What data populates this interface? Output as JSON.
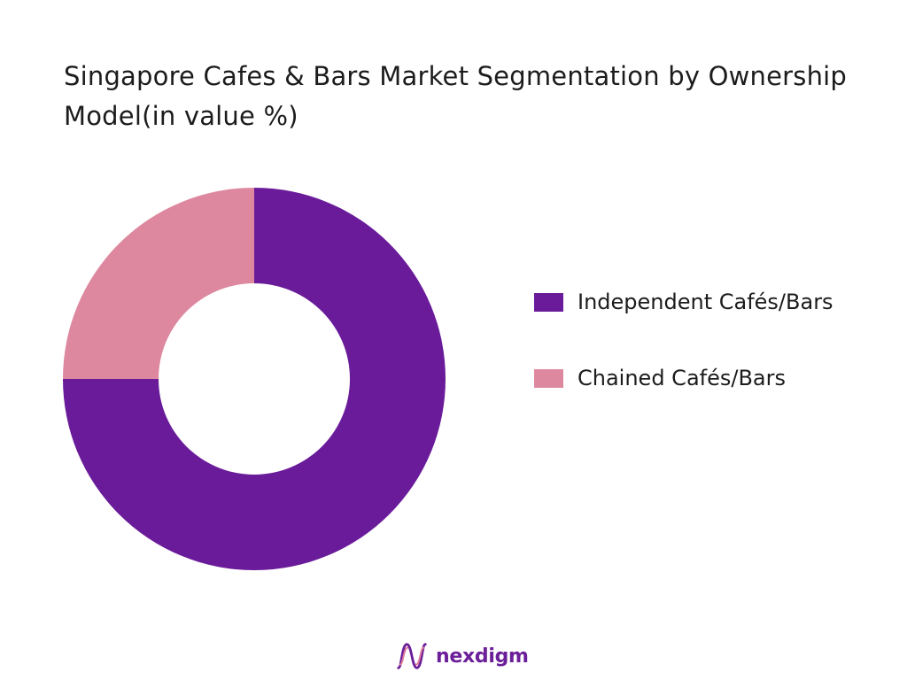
{
  "chart_data": {
    "type": "pie",
    "title": "Singapore Cafes & Bars  Market Segmentation by Ownership Model(in value %)",
    "categories": [
      "Independent Cafés/Bars",
      "Chained Cafés/Bars"
    ],
    "values": [
      75,
      25
    ],
    "colors": [
      "#6a1b9a",
      "#dd889f"
    ],
    "donut": true,
    "legend": "right"
  },
  "brand": {
    "name": "nexdigm",
    "color": "#6b1f98"
  }
}
